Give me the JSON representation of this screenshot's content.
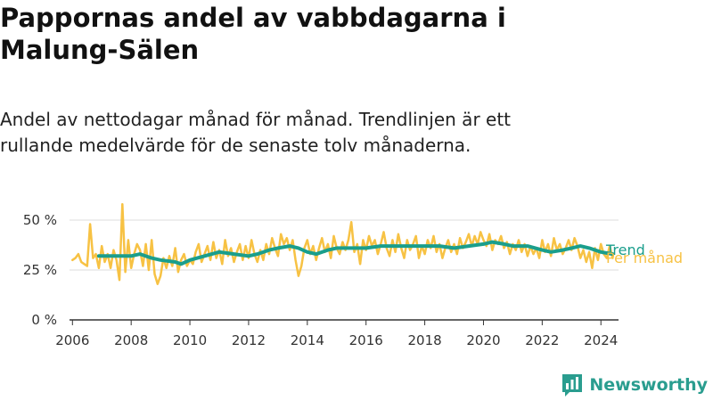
{
  "title": "Pappornas andel av vabbdagarna i Malung-Sälen",
  "subtitle": "Andel av nettodagar månad för månad. Trendlinjen är ett rullande medelvärde för de senaste tolv månaderna.",
  "brand": {
    "name": "Newsworthy",
    "icon": "bar-chart-logo-icon"
  },
  "colors": {
    "monthly": "#f7c244",
    "trend": "#1a9e8c",
    "grid": "#dddddd",
    "axis": "#333333"
  },
  "chart_data": {
    "type": "line",
    "y_ticks": [
      "0 %",
      "25 %",
      "50 %"
    ],
    "y_tick_values": [
      0,
      25,
      50
    ],
    "x_ticks": [
      "2006",
      "2008",
      "2010",
      "2012",
      "2014",
      "2016",
      "2018",
      "2020",
      "2022",
      "2024"
    ],
    "x_tick_values": [
      2006,
      2008,
      2010,
      2012,
      2014,
      2016,
      2018,
      2020,
      2022,
      2024
    ],
    "ylim": [
      0,
      50
    ],
    "xlim": [
      2005.9,
      2024.6
    ],
    "grid": true,
    "series": [
      {
        "name": "Per månad",
        "color": "#f7c244",
        "points": [
          [
            2006.0,
            30
          ],
          [
            2006.1,
            31
          ],
          [
            2006.2,
            33
          ],
          [
            2006.3,
            29
          ],
          [
            2006.4,
            28
          ],
          [
            2006.5,
            27
          ],
          [
            2006.6,
            48
          ],
          [
            2006.7,
            31
          ],
          [
            2006.8,
            33
          ],
          [
            2006.9,
            26
          ],
          [
            2007.0,
            37
          ],
          [
            2007.1,
            29
          ],
          [
            2007.2,
            33
          ],
          [
            2007.3,
            26
          ],
          [
            2007.4,
            35
          ],
          [
            2007.5,
            30
          ],
          [
            2007.6,
            20
          ],
          [
            2007.7,
            58
          ],
          [
            2007.8,
            24
          ],
          [
            2007.9,
            40
          ],
          [
            2008.0,
            26
          ],
          [
            2008.1,
            33
          ],
          [
            2008.2,
            38
          ],
          [
            2008.3,
            35
          ],
          [
            2008.4,
            27
          ],
          [
            2008.5,
            38
          ],
          [
            2008.6,
            25
          ],
          [
            2008.7,
            40
          ],
          [
            2008.8,
            23
          ],
          [
            2008.9,
            18
          ],
          [
            2009.0,
            22
          ],
          [
            2009.1,
            31
          ],
          [
            2009.2,
            26
          ],
          [
            2009.3,
            32
          ],
          [
            2009.4,
            27
          ],
          [
            2009.5,
            36
          ],
          [
            2009.6,
            24
          ],
          [
            2009.7,
            30
          ],
          [
            2009.8,
            33
          ],
          [
            2009.9,
            27
          ],
          [
            2010.0,
            30
          ],
          [
            2010.1,
            28
          ],
          [
            2010.2,
            34
          ],
          [
            2010.3,
            38
          ],
          [
            2010.4,
            29
          ],
          [
            2010.5,
            33
          ],
          [
            2010.6,
            37
          ],
          [
            2010.7,
            30
          ],
          [
            2010.8,
            39
          ],
          [
            2010.9,
            31
          ],
          [
            2011.0,
            35
          ],
          [
            2011.1,
            28
          ],
          [
            2011.2,
            40
          ],
          [
            2011.3,
            32
          ],
          [
            2011.4,
            36
          ],
          [
            2011.5,
            29
          ],
          [
            2011.6,
            34
          ],
          [
            2011.7,
            38
          ],
          [
            2011.8,
            30
          ],
          [
            2011.9,
            37
          ],
          [
            2012.0,
            31
          ],
          [
            2012.1,
            40
          ],
          [
            2012.2,
            33
          ],
          [
            2012.3,
            29
          ],
          [
            2012.4,
            35
          ],
          [
            2012.5,
            30
          ],
          [
            2012.6,
            38
          ],
          [
            2012.7,
            33
          ],
          [
            2012.8,
            41
          ],
          [
            2012.9,
            36
          ],
          [
            2013.0,
            32
          ],
          [
            2013.1,
            43
          ],
          [
            2013.2,
            38
          ],
          [
            2013.3,
            41
          ],
          [
            2013.4,
            35
          ],
          [
            2013.5,
            40
          ],
          [
            2013.6,
            30
          ],
          [
            2013.7,
            22
          ],
          [
            2013.8,
            27
          ],
          [
            2013.9,
            36
          ],
          [
            2014.0,
            40
          ],
          [
            2014.1,
            33
          ],
          [
            2014.2,
            37
          ],
          [
            2014.3,
            30
          ],
          [
            2014.4,
            36
          ],
          [
            2014.5,
            41
          ],
          [
            2014.6,
            34
          ],
          [
            2014.7,
            38
          ],
          [
            2014.8,
            31
          ],
          [
            2014.9,
            42
          ],
          [
            2015.0,
            36
          ],
          [
            2015.1,
            33
          ],
          [
            2015.2,
            39
          ],
          [
            2015.3,
            35
          ],
          [
            2015.4,
            40
          ],
          [
            2015.5,
            49
          ],
          [
            2015.6,
            34
          ],
          [
            2015.7,
            38
          ],
          [
            2015.8,
            28
          ],
          [
            2015.9,
            40
          ],
          [
            2016.0,
            35
          ],
          [
            2016.1,
            42
          ],
          [
            2016.2,
            37
          ],
          [
            2016.3,
            40
          ],
          [
            2016.4,
            33
          ],
          [
            2016.5,
            38
          ],
          [
            2016.6,
            44
          ],
          [
            2016.7,
            36
          ],
          [
            2016.8,
            32
          ],
          [
            2016.9,
            40
          ],
          [
            2017.0,
            34
          ],
          [
            2017.1,
            43
          ],
          [
            2017.2,
            36
          ],
          [
            2017.3,
            31
          ],
          [
            2017.4,
            40
          ],
          [
            2017.5,
            35
          ],
          [
            2017.6,
            38
          ],
          [
            2017.7,
            42
          ],
          [
            2017.8,
            31
          ],
          [
            2017.9,
            37
          ],
          [
            2018.0,
            33
          ],
          [
            2018.1,
            40
          ],
          [
            2018.2,
            36
          ],
          [
            2018.3,
            42
          ],
          [
            2018.4,
            34
          ],
          [
            2018.5,
            38
          ],
          [
            2018.6,
            31
          ],
          [
            2018.7,
            36
          ],
          [
            2018.8,
            40
          ],
          [
            2018.9,
            34
          ],
          [
            2019.0,
            38
          ],
          [
            2019.1,
            33
          ],
          [
            2019.2,
            41
          ],
          [
            2019.3,
            36
          ],
          [
            2019.4,
            39
          ],
          [
            2019.5,
            43
          ],
          [
            2019.6,
            37
          ],
          [
            2019.7,
            42
          ],
          [
            2019.8,
            38
          ],
          [
            2019.9,
            44
          ],
          [
            2020.0,
            40
          ],
          [
            2020.1,
            37
          ],
          [
            2020.2,
            43
          ],
          [
            2020.3,
            35
          ],
          [
            2020.4,
            40
          ],
          [
            2020.5,
            38
          ],
          [
            2020.6,
            42
          ],
          [
            2020.7,
            36
          ],
          [
            2020.8,
            39
          ],
          [
            2020.9,
            33
          ],
          [
            2021.0,
            38
          ],
          [
            2021.1,
            35
          ],
          [
            2021.2,
            40
          ],
          [
            2021.3,
            34
          ],
          [
            2021.4,
            38
          ],
          [
            2021.5,
            32
          ],
          [
            2021.6,
            37
          ],
          [
            2021.7,
            33
          ],
          [
            2021.8,
            36
          ],
          [
            2021.9,
            31
          ],
          [
            2022.0,
            40
          ],
          [
            2022.1,
            34
          ],
          [
            2022.2,
            38
          ],
          [
            2022.3,
            32
          ],
          [
            2022.4,
            41
          ],
          [
            2022.5,
            35
          ],
          [
            2022.6,
            38
          ],
          [
            2022.7,
            33
          ],
          [
            2022.8,
            36
          ],
          [
            2022.9,
            40
          ],
          [
            2023.0,
            35
          ],
          [
            2023.1,
            41
          ],
          [
            2023.2,
            37
          ],
          [
            2023.3,
            31
          ],
          [
            2023.4,
            35
          ],
          [
            2023.5,
            29
          ],
          [
            2023.6,
            34
          ],
          [
            2023.7,
            26
          ],
          [
            2023.8,
            36
          ],
          [
            2023.9,
            30
          ],
          [
            2024.0,
            38
          ],
          [
            2024.1,
            33
          ],
          [
            2024.2,
            31
          ],
          [
            2024.3,
            37
          ],
          [
            2024.4,
            31
          ]
        ]
      },
      {
        "name": "Trend",
        "color": "#1a9e8c",
        "points": [
          [
            2006.9,
            32
          ],
          [
            2007.5,
            32
          ],
          [
            2008.0,
            32
          ],
          [
            2008.3,
            33
          ],
          [
            2008.7,
            31
          ],
          [
            2009.0,
            30
          ],
          [
            2009.5,
            29
          ],
          [
            2009.7,
            28
          ],
          [
            2010.0,
            30
          ],
          [
            2010.5,
            32
          ],
          [
            2011.0,
            34
          ],
          [
            2011.5,
            33
          ],
          [
            2012.0,
            32
          ],
          [
            2012.3,
            33
          ],
          [
            2012.7,
            35
          ],
          [
            2013.0,
            36
          ],
          [
            2013.4,
            37
          ],
          [
            2013.7,
            36
          ],
          [
            2014.0,
            34
          ],
          [
            2014.3,
            33
          ],
          [
            2014.7,
            35
          ],
          [
            2015.0,
            36
          ],
          [
            2015.5,
            36
          ],
          [
            2016.0,
            36
          ],
          [
            2016.5,
            37
          ],
          [
            2017.0,
            37
          ],
          [
            2017.5,
            37
          ],
          [
            2018.0,
            37
          ],
          [
            2018.5,
            37
          ],
          [
            2019.0,
            36
          ],
          [
            2019.5,
            37
          ],
          [
            2020.0,
            38
          ],
          [
            2020.3,
            39
          ],
          [
            2020.7,
            38
          ],
          [
            2021.0,
            37
          ],
          [
            2021.5,
            37
          ],
          [
            2022.0,
            35
          ],
          [
            2022.3,
            34
          ],
          [
            2022.7,
            35
          ],
          [
            2023.0,
            36
          ],
          [
            2023.3,
            37
          ],
          [
            2023.6,
            36
          ],
          [
            2024.0,
            34
          ],
          [
            2024.4,
            33
          ]
        ]
      }
    ]
  }
}
